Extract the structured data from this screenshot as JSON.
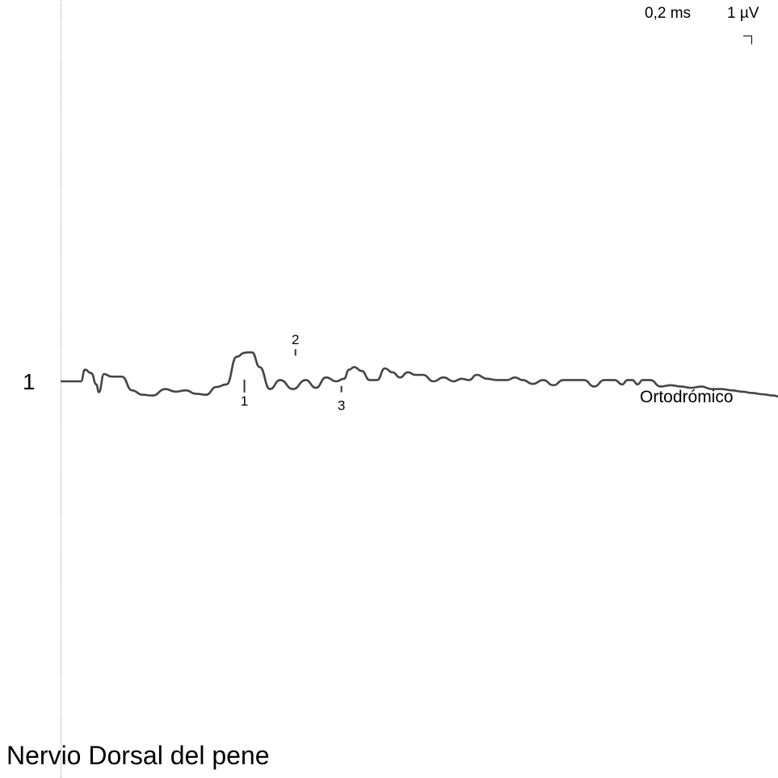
{
  "scale": {
    "time": "0,2 ms",
    "amplitude": "1 µV"
  },
  "trace": {
    "number": "1",
    "label": "Ortodrómico"
  },
  "title": "Nervio Dorsal del pene",
  "chart_data": {
    "type": "line",
    "title": "Nervio Dorsal del pene",
    "x_unit": "ms",
    "y_unit": "µV",
    "time_division_ms": 0.2,
    "amplitude_division_uV": 1,
    "grid": false,
    "series": [
      {
        "name": "Ortodrómico",
        "color": "#444444",
        "x": [
          0.0,
          0.1,
          0.16,
          0.19,
          0.24,
          0.28,
          0.3,
          0.34,
          0.4,
          0.48,
          0.56,
          0.64,
          0.72,
          0.82,
          0.9,
          0.98,
          1.06,
          1.14,
          1.22,
          1.3,
          1.38,
          1.44,
          1.46,
          1.5,
          1.56,
          1.64,
          1.72,
          1.82,
          1.92,
          2.0,
          2.08,
          2.16,
          2.22,
          2.26,
          2.3,
          2.36,
          2.42,
          2.48,
          2.54,
          2.6,
          2.66,
          2.72,
          2.78,
          2.84,
          2.92,
          3.0,
          3.08,
          3.14,
          3.2,
          3.26,
          3.34,
          3.42,
          3.5,
          3.56,
          3.62,
          3.7,
          3.78,
          3.86,
          3.94,
          4.02,
          4.1,
          4.18,
          4.26,
          4.34,
          4.4,
          4.44,
          4.48,
          4.52,
          4.56,
          4.62,
          4.7,
          4.78,
          4.86,
          4.94,
          5.02,
          5.1,
          5.18,
          5.26,
          5.34,
          5.42,
          5.5,
          5.58,
          5.64
        ],
        "y": [
          0.0,
          0.0,
          0.0,
          0.45,
          0.32,
          -0.12,
          -0.42,
          0.28,
          0.18,
          0.18,
          -0.35,
          -0.52,
          -0.55,
          -0.3,
          -0.4,
          -0.35,
          -0.48,
          -0.52,
          -0.22,
          -0.12,
          0.95,
          1.1,
          1.12,
          1.12,
          0.55,
          -0.3,
          0.05,
          -0.3,
          0.05,
          -0.25,
          0.15,
          0.0,
          0.1,
          0.45,
          0.55,
          0.4,
          0.05,
          0.05,
          0.5,
          0.35,
          0.15,
          0.35,
          0.25,
          0.25,
          0.0,
          0.15,
          0.0,
          0.1,
          0.05,
          0.25,
          0.1,
          0.05,
          0.05,
          0.15,
          0.05,
          -0.1,
          0.05,
          -0.15,
          0.05,
          0.05,
          0.05,
          -0.2,
          0.05,
          0.05,
          -0.12,
          0.05,
          0.05,
          -0.12,
          0.05,
          0.05,
          -0.2,
          -0.15,
          -0.2,
          -0.25,
          -0.2,
          -0.3,
          -0.3,
          -0.35,
          -0.4,
          -0.45,
          -0.5,
          -0.55,
          -0.6
        ]
      }
    ],
    "markers": [
      {
        "label": "1",
        "x": 1.44,
        "y": -0.12
      },
      {
        "label": "2",
        "x": 1.84,
        "y": 1.12
      },
      {
        "label": "3",
        "x": 2.2,
        "y": -0.3
      }
    ]
  }
}
